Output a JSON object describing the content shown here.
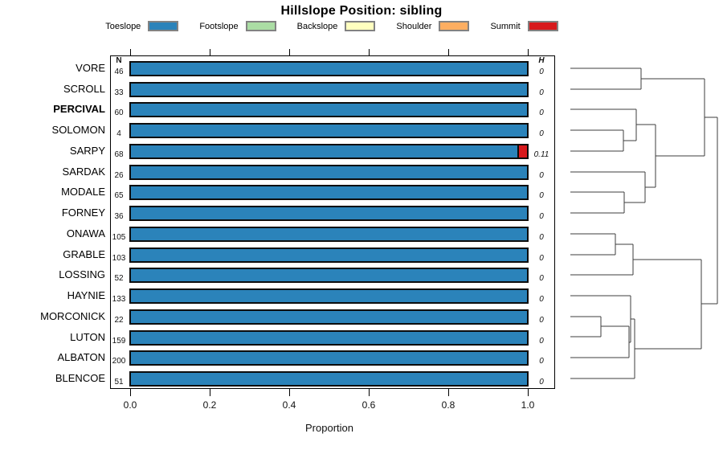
{
  "chart_data": {
    "type": "bar",
    "orientation": "horizontal",
    "stacked": true,
    "title": "Hillslope Position: sibling",
    "xlabel": "Proportion",
    "xlim": [
      0,
      1
    ],
    "x_ticks": [
      "0.0",
      "0.2",
      "0.4",
      "0.6",
      "0.8",
      "1.0"
    ],
    "x_tick_values": [
      0.0,
      0.2,
      0.4,
      0.6,
      0.8,
      1.0
    ],
    "grid": false,
    "legend": {
      "position": "top",
      "entries": [
        {
          "label": "Toeslope",
          "color": "#2B83BA"
        },
        {
          "label": "Footslope",
          "color": "#ABDDA4"
        },
        {
          "label": "Backslope",
          "color": "#FFFFBF"
        },
        {
          "label": "Shoulder",
          "color": "#FDAE61"
        },
        {
          "label": "Summit",
          "color": "#D7191C"
        }
      ]
    },
    "n_column_header": "N",
    "h_column_header": "H",
    "rows": [
      {
        "label": "VORE",
        "n": 46,
        "h": "0",
        "bold": false,
        "segments": [
          {
            "category": "Toeslope",
            "value": 1.0
          }
        ]
      },
      {
        "label": "SCROLL",
        "n": 33,
        "h": "0",
        "bold": false,
        "segments": [
          {
            "category": "Toeslope",
            "value": 1.0
          }
        ]
      },
      {
        "label": "PERCIVAL",
        "n": 60,
        "h": "0",
        "bold": true,
        "segments": [
          {
            "category": "Toeslope",
            "value": 1.0
          }
        ]
      },
      {
        "label": "SOLOMON",
        "n": 4,
        "h": "0",
        "bold": false,
        "segments": [
          {
            "category": "Toeslope",
            "value": 1.0
          }
        ]
      },
      {
        "label": "SARPY",
        "n": 68,
        "h": "0.11",
        "bold": false,
        "segments": [
          {
            "category": "Toeslope",
            "value": 0.975
          },
          {
            "category": "Summit",
            "value": 0.025
          }
        ]
      },
      {
        "label": "SARDAK",
        "n": 26,
        "h": "0",
        "bold": false,
        "segments": [
          {
            "category": "Toeslope",
            "value": 1.0
          }
        ]
      },
      {
        "label": "MODALE",
        "n": 65,
        "h": "0",
        "bold": false,
        "segments": [
          {
            "category": "Toeslope",
            "value": 1.0
          }
        ]
      },
      {
        "label": "FORNEY",
        "n": 36,
        "h": "0",
        "bold": false,
        "segments": [
          {
            "category": "Toeslope",
            "value": 1.0
          }
        ]
      },
      {
        "label": "ONAWA",
        "n": 105,
        "h": "0",
        "bold": false,
        "segments": [
          {
            "category": "Toeslope",
            "value": 1.0
          }
        ]
      },
      {
        "label": "GRABLE",
        "n": 103,
        "h": "0",
        "bold": false,
        "segments": [
          {
            "category": "Toeslope",
            "value": 1.0
          }
        ]
      },
      {
        "label": "LOSSING",
        "n": 52,
        "h": "0",
        "bold": false,
        "segments": [
          {
            "category": "Toeslope",
            "value": 1.0
          }
        ]
      },
      {
        "label": "HAYNIE",
        "n": 133,
        "h": "0",
        "bold": false,
        "segments": [
          {
            "category": "Toeslope",
            "value": 1.0
          }
        ]
      },
      {
        "label": "MORCONICK",
        "n": 22,
        "h": "0",
        "bold": false,
        "segments": [
          {
            "category": "Toeslope",
            "value": 1.0
          }
        ]
      },
      {
        "label": "LUTON",
        "n": 159,
        "h": "0",
        "bold": false,
        "segments": [
          {
            "category": "Toeslope",
            "value": 1.0
          }
        ]
      },
      {
        "label": "ALBATON",
        "n": 200,
        "h": "0",
        "bold": false,
        "segments": [
          {
            "category": "Toeslope",
            "value": 1.0
          }
        ]
      },
      {
        "label": "BLENCOE",
        "n": 51,
        "h": "0",
        "bold": false,
        "segments": [
          {
            "category": "Toeslope",
            "value": 1.0
          }
        ]
      }
    ],
    "dendrogram": {
      "line_color": "#3d3d3d",
      "segments": [
        [
          710,
          85,
          798,
          85
        ],
        [
          710,
          111,
          798,
          111
        ],
        [
          710,
          136,
          792,
          136
        ],
        [
          710,
          162,
          776,
          162
        ],
        [
          710,
          188,
          776,
          188
        ],
        [
          710,
          214,
          803,
          214
        ],
        [
          710,
          239,
          777,
          239
        ],
        [
          710,
          265,
          777,
          265
        ],
        [
          710,
          291,
          766,
          291
        ],
        [
          710,
          317,
          766,
          317
        ],
        [
          710,
          342,
          788,
          342
        ],
        [
          710,
          368,
          785,
          368
        ],
        [
          710,
          394,
          748,
          394
        ],
        [
          710,
          419,
          748,
          419
        ],
        [
          710,
          445,
          783,
          445
        ],
        [
          710,
          471,
          790,
          471
        ],
        [
          798,
          85,
          798,
          111
        ],
        [
          798,
          98,
          877,
          98
        ],
        [
          776,
          162,
          776,
          188
        ],
        [
          776,
          175,
          792,
          175
        ],
        [
          792,
          136,
          792,
          175
        ],
        [
          792,
          155,
          816,
          155
        ],
        [
          777,
          239,
          777,
          265
        ],
        [
          777,
          252,
          803,
          252
        ],
        [
          803,
          214,
          803,
          252
        ],
        [
          803,
          233,
          816,
          233
        ],
        [
          816,
          155,
          816,
          233
        ],
        [
          816,
          194,
          877,
          194
        ],
        [
          877,
          98,
          877,
          194
        ],
        [
          877,
          146,
          893,
          146
        ],
        [
          766,
          291,
          766,
          317
        ],
        [
          766,
          304,
          788,
          304
        ],
        [
          788,
          304,
          788,
          342
        ],
        [
          788,
          323,
          873,
          323
        ],
        [
          748,
          394,
          748,
          419
        ],
        [
          748,
          406,
          783,
          406
        ],
        [
          783,
          406,
          783,
          445
        ],
        [
          783,
          426,
          785,
          426
        ],
        [
          785,
          368,
          785,
          426
        ],
        [
          785,
          397,
          790,
          397
        ],
        [
          790,
          397,
          790,
          471
        ],
        [
          790,
          434,
          873,
          434
        ],
        [
          873,
          323,
          873,
          434
        ],
        [
          873,
          378,
          893,
          378
        ],
        [
          893,
          146,
          893,
          378
        ]
      ]
    }
  }
}
